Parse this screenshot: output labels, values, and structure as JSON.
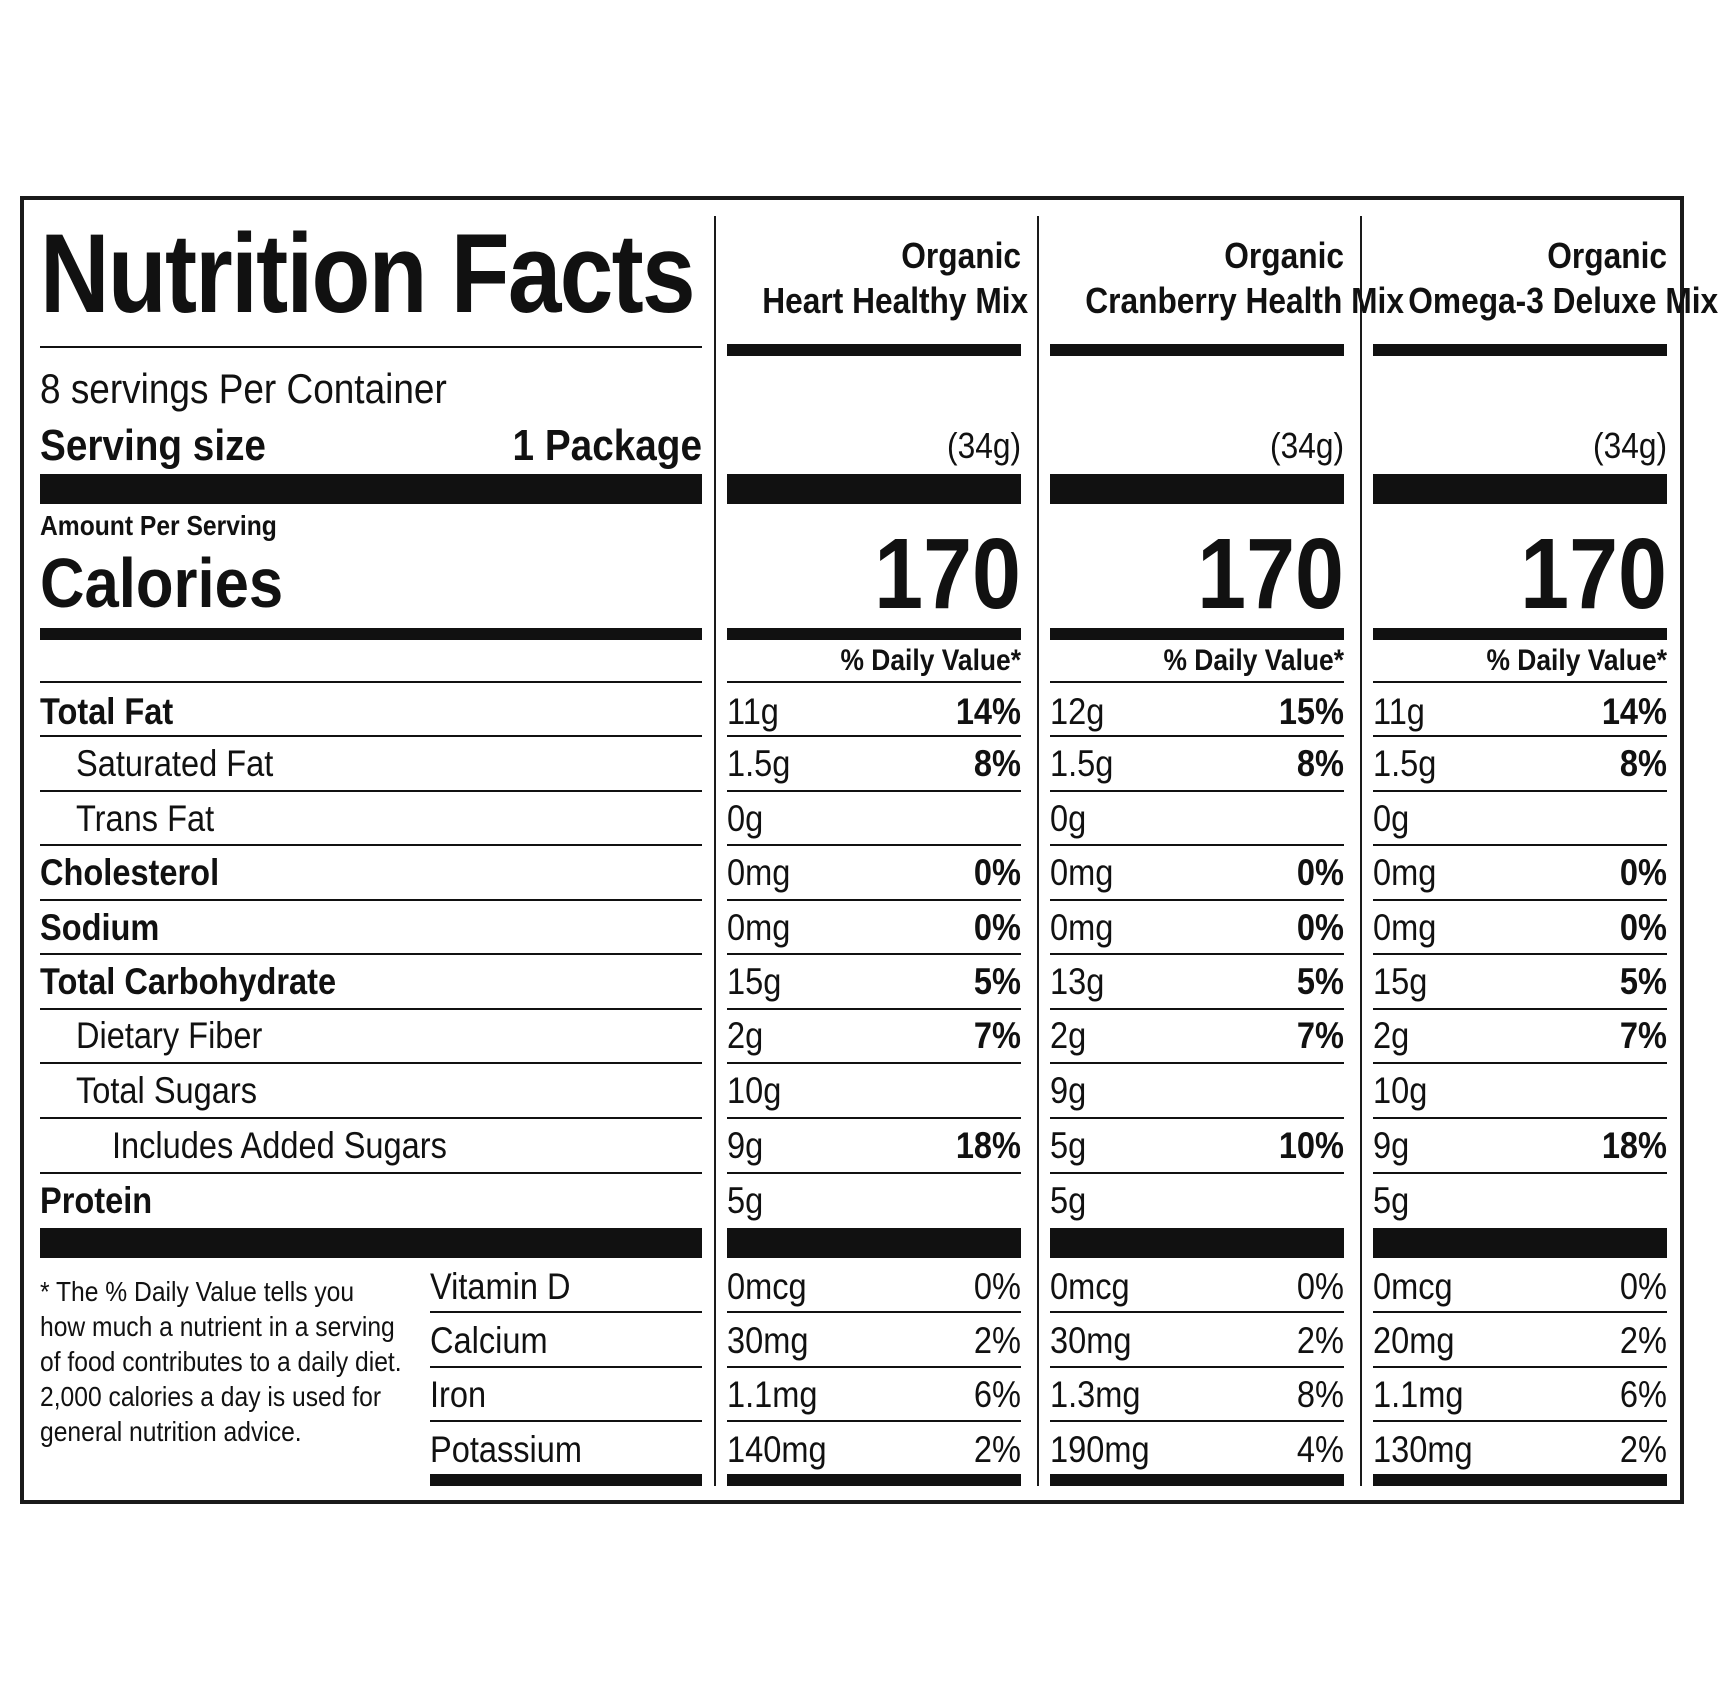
{
  "title": "Nutrition Facts",
  "servings_per_container": "8 servings Per Container",
  "serving_size_label": "Serving size",
  "serving_size_value": "1 Package",
  "amount_per_serving": "Amount Per Serving",
  "calories_label": "Calories",
  "daily_value_header": "% Daily Value*",
  "nutrient_labels": [
    "Total Fat",
    "Saturated Fat",
    "Trans Fat",
    "Cholesterol",
    "Sodium",
    "Total Carbohydrate",
    "Dietary Fiber",
    "Total Sugars",
    "Includes Added Sugars",
    "Protein"
  ],
  "vitamin_labels": [
    "Vitamin D",
    "Calcium",
    "Iron",
    "Potassium"
  ],
  "footnote": [
    "* The % Daily Value tells you",
    "how  much a nutrient in a serving",
    "of food contributes to a daily diet.",
    "2,000 calories a day is used for",
    "general nutrition advice."
  ],
  "products": [
    {
      "name_line1": "Organic",
      "name_line2": "Heart Healthy Mix",
      "serving_grams": "(34g)",
      "calories": "170",
      "nutrients": [
        {
          "amount": "11g",
          "dv": "14%"
        },
        {
          "amount": "1.5g",
          "dv": "8%"
        },
        {
          "amount": "0g",
          "dv": ""
        },
        {
          "amount": "0mg",
          "dv": "0%"
        },
        {
          "amount": "0mg",
          "dv": "0%"
        },
        {
          "amount": "15g",
          "dv": "5%"
        },
        {
          "amount": "2g",
          "dv": "7%"
        },
        {
          "amount": "10g",
          "dv": ""
        },
        {
          "amount": "9g",
          "dv": "18%"
        },
        {
          "amount": "5g",
          "dv": ""
        }
      ],
      "vitamins": [
        {
          "amount": "0mcg",
          "dv": "0%"
        },
        {
          "amount": "30mg",
          "dv": "2%"
        },
        {
          "amount": "1.1mg",
          "dv": "6%"
        },
        {
          "amount": "140mg",
          "dv": "2%"
        }
      ]
    },
    {
      "name_line1": "Organic",
      "name_line2": "Cranberry Health Mix",
      "serving_grams": "(34g)",
      "calories": "170",
      "nutrients": [
        {
          "amount": "12g",
          "dv": "15%"
        },
        {
          "amount": "1.5g",
          "dv": "8%"
        },
        {
          "amount": "0g",
          "dv": ""
        },
        {
          "amount": "0mg",
          "dv": "0%"
        },
        {
          "amount": "0mg",
          "dv": "0%"
        },
        {
          "amount": "13g",
          "dv": "5%"
        },
        {
          "amount": "2g",
          "dv": "7%"
        },
        {
          "amount": "9g",
          "dv": ""
        },
        {
          "amount": "5g",
          "dv": "10%"
        },
        {
          "amount": "5g",
          "dv": ""
        }
      ],
      "vitamins": [
        {
          "amount": "0mcg",
          "dv": "0%"
        },
        {
          "amount": "30mg",
          "dv": "2%"
        },
        {
          "amount": "1.3mg",
          "dv": "8%"
        },
        {
          "amount": "190mg",
          "dv": "4%"
        }
      ]
    },
    {
      "name_line1": "Organic",
      "name_line2": "Omega-3 Deluxe Mix",
      "serving_grams": "(34g)",
      "calories": "170",
      "nutrients": [
        {
          "amount": "11g",
          "dv": "14%"
        },
        {
          "amount": "1.5g",
          "dv": "8%"
        },
        {
          "amount": "0g",
          "dv": ""
        },
        {
          "amount": "0mg",
          "dv": "0%"
        },
        {
          "amount": "0mg",
          "dv": "0%"
        },
        {
          "amount": "15g",
          "dv": "5%"
        },
        {
          "amount": "2g",
          "dv": "7%"
        },
        {
          "amount": "10g",
          "dv": ""
        },
        {
          "amount": "9g",
          "dv": "18%"
        },
        {
          "amount": "5g",
          "dv": ""
        }
      ],
      "vitamins": [
        {
          "amount": "0mcg",
          "dv": "0%"
        },
        {
          "amount": "20mg",
          "dv": "2%"
        },
        {
          "amount": "1.1mg",
          "dv": "6%"
        },
        {
          "amount": "130mg",
          "dv": "2%"
        }
      ]
    }
  ]
}
